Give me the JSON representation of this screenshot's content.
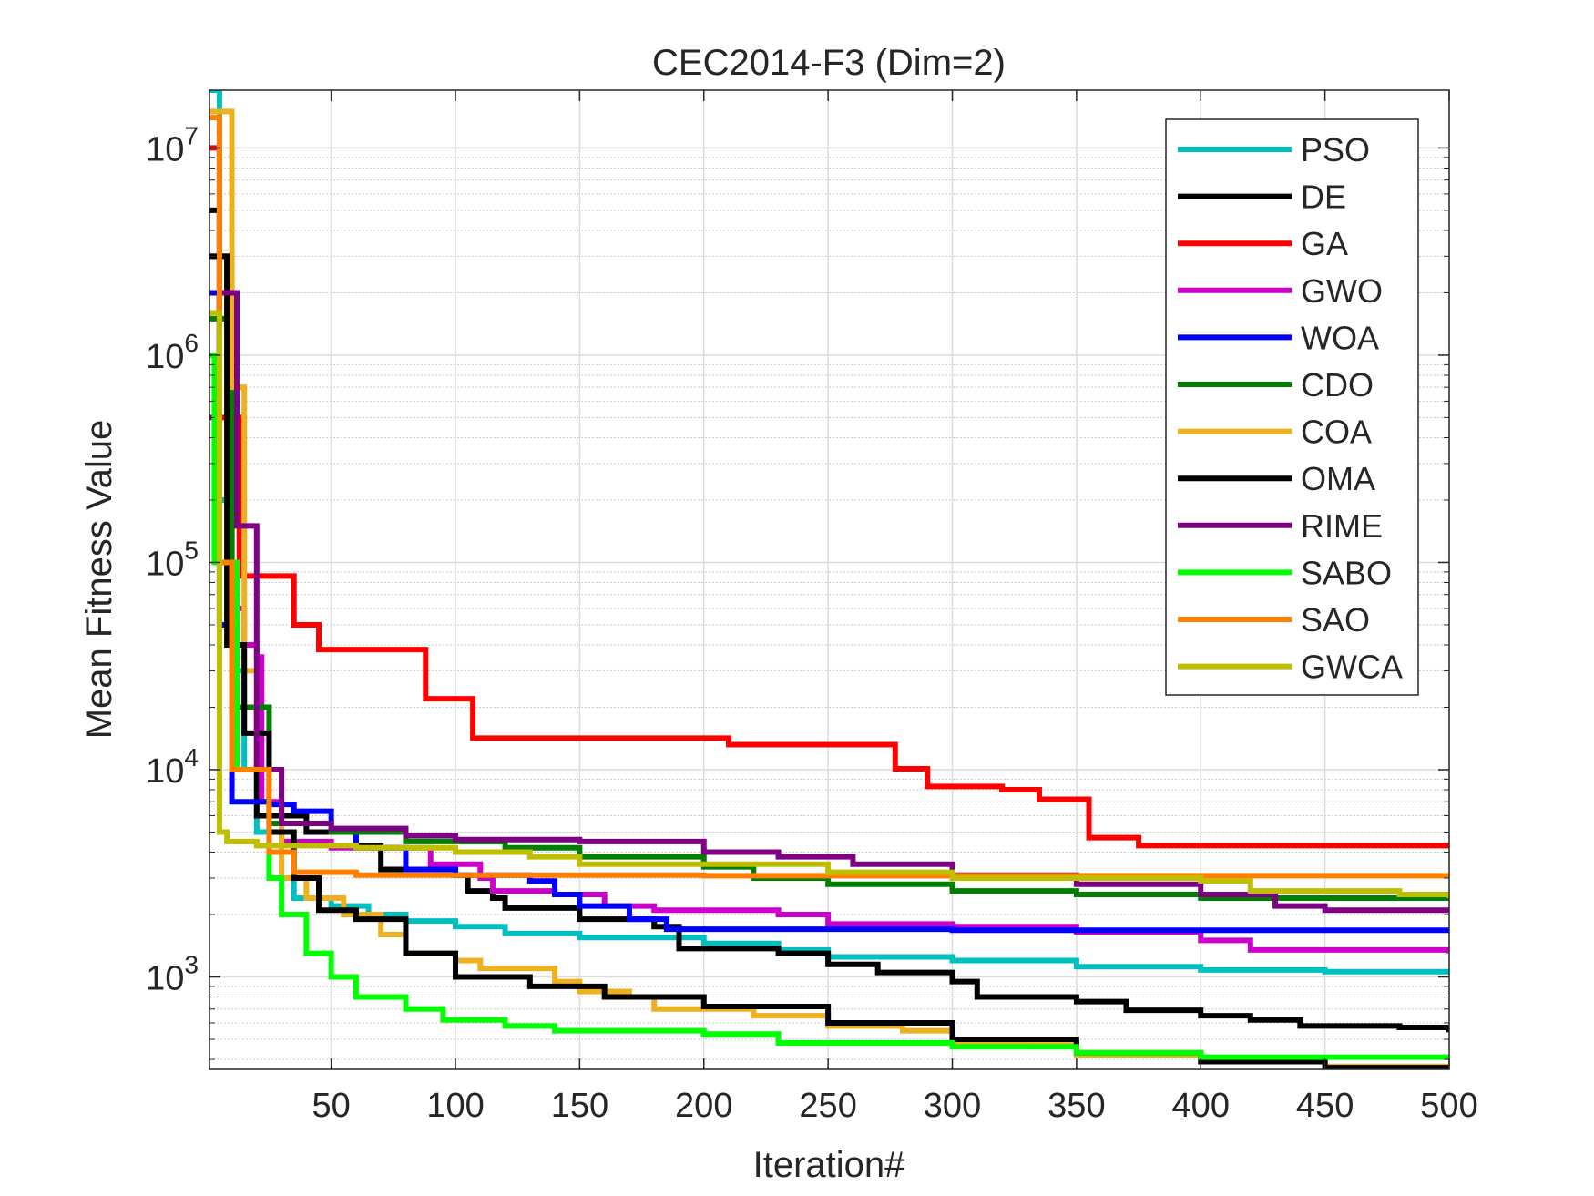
{
  "chart_data": {
    "type": "line",
    "title": "CEC2014-F3 (Dim=2)",
    "xlabel": "Iteration#",
    "ylabel": "Mean Fitness Value",
    "xlim": [
      1,
      500
    ],
    "ylim": [
      358,
      19000000
    ],
    "yscale": "log",
    "grid": true,
    "legend_position": "top-right",
    "xticks": [
      "50",
      "100",
      "150",
      "200",
      "250",
      "300",
      "350",
      "400",
      "450",
      "500"
    ],
    "xtick_values": [
      50,
      100,
      150,
      200,
      250,
      300,
      350,
      400,
      450,
      500
    ],
    "yticks": [
      {
        "base": "10",
        "exp": "3",
        "value": 1000
      },
      {
        "base": "10",
        "exp": "4",
        "value": 10000
      },
      {
        "base": "10",
        "exp": "5",
        "value": 100000
      },
      {
        "base": "10",
        "exp": "6",
        "value": 1000000
      },
      {
        "base": "10",
        "exp": "7",
        "value": 10000000
      }
    ],
    "series": [
      {
        "name": "PSO",
        "color": "#00BFBF",
        "points": [
          [
            1,
            19000000
          ],
          [
            5,
            200000
          ],
          [
            10,
            30000
          ],
          [
            15,
            10000
          ],
          [
            20,
            5000
          ],
          [
            25,
            3000
          ],
          [
            35,
            2400
          ],
          [
            50,
            2200
          ],
          [
            65,
            2000
          ],
          [
            80,
            1860
          ],
          [
            100,
            1750
          ],
          [
            120,
            1620
          ],
          [
            150,
            1550
          ],
          [
            200,
            1450
          ],
          [
            230,
            1350
          ],
          [
            250,
            1250
          ],
          [
            300,
            1200
          ],
          [
            350,
            1120
          ],
          [
            400,
            1080
          ],
          [
            450,
            1060
          ],
          [
            500,
            1040
          ]
        ]
      },
      {
        "name": "DE",
        "color": "#000000",
        "points": [
          [
            1,
            5000000
          ],
          [
            5,
            100000
          ],
          [
            10,
            20000
          ],
          [
            20,
            6000
          ],
          [
            40,
            5000
          ],
          [
            60,
            4300
          ],
          [
            70,
            3300
          ],
          [
            100,
            3100
          ],
          [
            105,
            2600
          ],
          [
            115,
            2400
          ],
          [
            120,
            2150
          ],
          [
            150,
            1900
          ],
          [
            180,
            1750
          ],
          [
            190,
            1370
          ],
          [
            230,
            1300
          ],
          [
            250,
            1150
          ],
          [
            270,
            1050
          ],
          [
            300,
            950
          ],
          [
            310,
            800
          ],
          [
            350,
            760
          ],
          [
            370,
            690
          ],
          [
            400,
            650
          ],
          [
            420,
            620
          ],
          [
            440,
            580
          ],
          [
            480,
            570
          ],
          [
            500,
            540
          ]
        ]
      },
      {
        "name": "GA",
        "color": "#FF0000",
        "points": [
          [
            1,
            10000000
          ],
          [
            5,
            500000
          ],
          [
            13,
            86000
          ],
          [
            35,
            50000
          ],
          [
            45,
            38000
          ],
          [
            88,
            22000
          ],
          [
            107,
            14200
          ],
          [
            210,
            13200
          ],
          [
            277,
            10100
          ],
          [
            290,
            8300
          ],
          [
            320,
            8000
          ],
          [
            335,
            7200
          ],
          [
            355,
            4700
          ],
          [
            375,
            4300
          ],
          [
            500,
            4300
          ]
        ]
      },
      {
        "name": "GWO",
        "color": "#CC00CC",
        "points": [
          [
            1,
            3000000
          ],
          [
            10,
            60000
          ],
          [
            15,
            40000
          ],
          [
            20,
            35000
          ],
          [
            22,
            7000
          ],
          [
            30,
            4500
          ],
          [
            50,
            4200
          ],
          [
            90,
            3500
          ],
          [
            110,
            3000
          ],
          [
            115,
            2600
          ],
          [
            140,
            2500
          ],
          [
            160,
            2200
          ],
          [
            180,
            2100
          ],
          [
            230,
            2000
          ],
          [
            250,
            1800
          ],
          [
            300,
            1750
          ],
          [
            350,
            1650
          ],
          [
            400,
            1500
          ],
          [
            420,
            1350
          ],
          [
            500,
            1300
          ]
        ]
      },
      {
        "name": "WOA",
        "color": "#0000FF",
        "points": [
          [
            1,
            2000000
          ],
          [
            5,
            50000
          ],
          [
            10,
            7000
          ],
          [
            25,
            6800
          ],
          [
            35,
            6300
          ],
          [
            50,
            5000
          ],
          [
            60,
            4200
          ],
          [
            80,
            3300
          ],
          [
            100,
            3100
          ],
          [
            130,
            2900
          ],
          [
            140,
            2500
          ],
          [
            150,
            2200
          ],
          [
            170,
            1900
          ],
          [
            185,
            1700
          ],
          [
            300,
            1680
          ],
          [
            500,
            1650
          ]
        ]
      },
      {
        "name": "CDO",
        "color": "#007F00",
        "points": [
          [
            1,
            1500000
          ],
          [
            10,
            20000
          ],
          [
            25,
            5500
          ],
          [
            50,
            5000
          ],
          [
            80,
            4500
          ],
          [
            120,
            4200
          ],
          [
            150,
            3800
          ],
          [
            200,
            3400
          ],
          [
            220,
            3000
          ],
          [
            250,
            2800
          ],
          [
            300,
            2600
          ],
          [
            350,
            2500
          ],
          [
            400,
            2400
          ],
          [
            500,
            2400
          ]
        ]
      },
      {
        "name": "COA",
        "color": "#EDB120",
        "points": [
          [
            1,
            15000000
          ],
          [
            10,
            700000
          ],
          [
            15,
            30000
          ],
          [
            20,
            10000
          ],
          [
            30,
            3000
          ],
          [
            40,
            2400
          ],
          [
            55,
            2000
          ],
          [
            70,
            1600
          ],
          [
            80,
            1300
          ],
          [
            100,
            1200
          ],
          [
            110,
            1100
          ],
          [
            140,
            950
          ],
          [
            150,
            850
          ],
          [
            170,
            800
          ],
          [
            180,
            700
          ],
          [
            220,
            650
          ],
          [
            250,
            580
          ],
          [
            280,
            550
          ],
          [
            300,
            480
          ],
          [
            330,
            470
          ],
          [
            350,
            420
          ],
          [
            400,
            390
          ],
          [
            450,
            370
          ],
          [
            500,
            350
          ]
        ]
      },
      {
        "name": "OMA",
        "color": "#000000",
        "points": [
          [
            1,
            3000000
          ],
          [
            8,
            40000
          ],
          [
            15,
            15000
          ],
          [
            25,
            5000
          ],
          [
            35,
            3000
          ],
          [
            45,
            2100
          ],
          [
            60,
            1900
          ],
          [
            80,
            1300
          ],
          [
            100,
            1000
          ],
          [
            130,
            900
          ],
          [
            160,
            800
          ],
          [
            200,
            720
          ],
          [
            250,
            600
          ],
          [
            300,
            500
          ],
          [
            350,
            430
          ],
          [
            400,
            390
          ],
          [
            450,
            365
          ],
          [
            500,
            355
          ]
        ]
      },
      {
        "name": "RIME",
        "color": "#7E0085",
        "points": [
          [
            1,
            500000
          ],
          [
            5,
            2000000
          ],
          [
            12,
            150000
          ],
          [
            20,
            10000
          ],
          [
            30,
            5500
          ],
          [
            50,
            5200
          ],
          [
            80,
            4800
          ],
          [
            100,
            4600
          ],
          [
            150,
            4500
          ],
          [
            200,
            4000
          ],
          [
            230,
            3800
          ],
          [
            260,
            3500
          ],
          [
            300,
            3100
          ],
          [
            350,
            2800
          ],
          [
            400,
            2500
          ],
          [
            430,
            2200
          ],
          [
            450,
            2100
          ],
          [
            500,
            2100
          ]
        ]
      },
      {
        "name": "SABO",
        "color": "#00FF00",
        "points": [
          [
            1,
            1000000
          ],
          [
            3,
            100000
          ],
          [
            12,
            10000
          ],
          [
            25,
            3000
          ],
          [
            30,
            2000
          ],
          [
            40,
            1300
          ],
          [
            50,
            1000
          ],
          [
            60,
            800
          ],
          [
            80,
            700
          ],
          [
            95,
            620
          ],
          [
            120,
            580
          ],
          [
            140,
            550
          ],
          [
            200,
            530
          ],
          [
            230,
            480
          ],
          [
            300,
            460
          ],
          [
            350,
            430
          ],
          [
            400,
            410
          ],
          [
            500,
            405
          ]
        ]
      },
      {
        "name": "SAO",
        "color": "#FF8000",
        "points": [
          [
            1,
            14000000
          ],
          [
            5,
            100000
          ],
          [
            10,
            10000
          ],
          [
            25,
            4000
          ],
          [
            35,
            3200
          ],
          [
            60,
            3100
          ],
          [
            200,
            3080
          ],
          [
            500,
            3050
          ]
        ]
      },
      {
        "name": "GWCA",
        "color": "#BFBF00",
        "points": [
          [
            1,
            1600000
          ],
          [
            5,
            5000
          ],
          [
            8,
            4500
          ],
          [
            20,
            4300
          ],
          [
            60,
            4200
          ],
          [
            100,
            4000
          ],
          [
            130,
            3800
          ],
          [
            150,
            3500
          ],
          [
            250,
            3200
          ],
          [
            300,
            3000
          ],
          [
            400,
            2900
          ],
          [
            420,
            2600
          ],
          [
            480,
            2500
          ],
          [
            500,
            2400
          ]
        ]
      }
    ]
  }
}
